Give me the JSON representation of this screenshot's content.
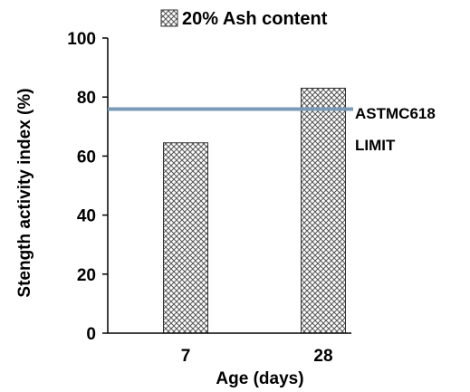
{
  "chart_data": {
    "type": "bar",
    "categories": [
      "7",
      "28"
    ],
    "series": [
      {
        "name": "20% Ash content",
        "values": [
          64.5,
          83
        ]
      }
    ],
    "xlabel": "Age (days)",
    "ylabel": "Stength activity index (%)",
    "ylim": [
      0,
      100
    ],
    "yticks": [
      "0",
      "20",
      "40",
      "60",
      "80",
      "100"
    ],
    "legend_position": "top",
    "bar_fill": "crosshatch",
    "reference_line": {
      "value": 75,
      "label_line1": "ASTMC618",
      "label_line2": "LIMIT",
      "color": "#7a9bb8"
    }
  }
}
